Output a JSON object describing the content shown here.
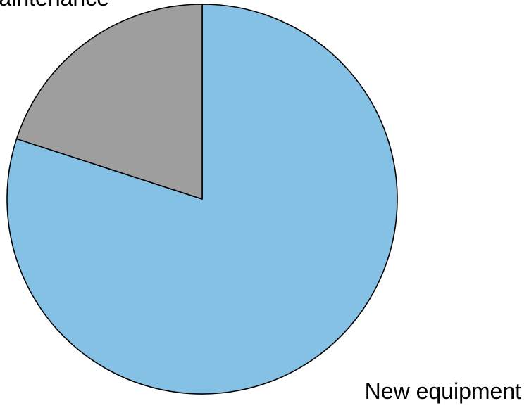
{
  "chart_data": {
    "type": "pie",
    "slices": [
      {
        "label": "New equipment",
        "value": 80,
        "color": "#85C1E5"
      },
      {
        "label": "Maintenance",
        "value": 20,
        "color": "#9E9E9E"
      }
    ],
    "title": ""
  }
}
